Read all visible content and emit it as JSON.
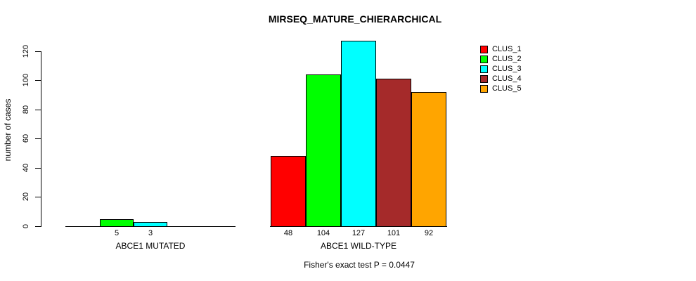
{
  "chart_data": {
    "type": "bar",
    "grouped": true,
    "title": "MIRSEQ_MATURE_CHIERARCHICAL",
    "xlabel": "",
    "ylabel": "number of cases",
    "annotation": "Fisher's exact test P = 0.0447",
    "categories": [
      "ABCE1 MUTATED",
      "ABCE1 WILD-TYPE"
    ],
    "series": [
      {
        "name": "CLUS_1",
        "color": "#FF0000",
        "values": [
          0,
          48
        ]
      },
      {
        "name": "CLUS_2",
        "color": "#00FF00",
        "values": [
          5,
          104
        ]
      },
      {
        "name": "CLUS_3",
        "color": "#00FFFF",
        "values": [
          3,
          127
        ]
      },
      {
        "name": "CLUS_4",
        "color": "#A52A2A",
        "values": [
          0,
          101
        ]
      },
      {
        "name": "CLUS_5",
        "color": "#FFA500",
        "values": [
          0,
          92
        ]
      }
    ],
    "bar_value_labels": [
      [
        "",
        "5",
        "3",
        "",
        ""
      ],
      [
        "48",
        "104",
        "127",
        "101",
        "92"
      ]
    ],
    "yticks": [
      0,
      20,
      40,
      60,
      80,
      100,
      120
    ],
    "ylim": [
      0,
      127
    ],
    "grid": false,
    "legend_position": "right",
    "legend_items": [
      "CLUS_1",
      "CLUS_2",
      "CLUS_3",
      "CLUS_4",
      "CLUS_5"
    ],
    "background_color": "#FFFFFF",
    "bar_border_color": "#000000"
  }
}
